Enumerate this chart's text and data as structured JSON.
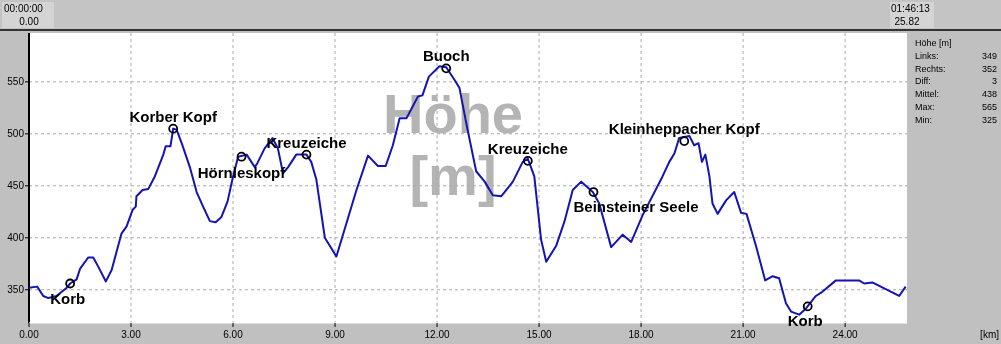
{
  "chart_data": {
    "type": "line",
    "ylabel": "Höhe [m]",
    "xlim": [
      0,
      25.82
    ],
    "ylim": [
      318,
      597
    ],
    "xticks": [
      {
        "value": 0,
        "label": "0.00"
      },
      {
        "value": 3,
        "label": "3.00"
      },
      {
        "value": 6,
        "label": "6.00"
      },
      {
        "value": 9,
        "label": "9.00"
      },
      {
        "value": 12,
        "label": "12.00"
      },
      {
        "value": 15,
        "label": "15.00"
      },
      {
        "value": 18,
        "label": "18.00"
      },
      {
        "value": 21,
        "label": "21.00"
      },
      {
        "value": 24,
        "label": "24.00"
      }
    ],
    "yticks": [
      350,
      400,
      450,
      500,
      550
    ],
    "grid": true,
    "series": [
      {
        "color": "#1414b4",
        "marker": "none",
        "line_style": "solid",
        "x": [
          0,
          0.24,
          0.42,
          0.57,
          0.81,
          1.11,
          1.21,
          1.4,
          1.5,
          1.74,
          1.89,
          2.04,
          2.26,
          2.43,
          2.72,
          2.87,
          3.05,
          3.14,
          3.16,
          3.34,
          3.51,
          3.7,
          3.95,
          4.02,
          4.16,
          4.24,
          4.34,
          4.49,
          4.73,
          4.93,
          5.12,
          5.32,
          5.49,
          5.66,
          5.84,
          6.0,
          6.15,
          6.4,
          6.64,
          6.72,
          6.93,
          7.16,
          7.32,
          7.47,
          7.62,
          7.86,
          8.16,
          8.3,
          8.45,
          8.7,
          9.04,
          9.28,
          9.63,
          9.97,
          10.26,
          10.49,
          10.7,
          10.9,
          11.1,
          11.44,
          11.57,
          11.76,
          12.07,
          12.27,
          12.51,
          12.66,
          12.86,
          13.15,
          13.4,
          13.64,
          13.89,
          14.23,
          14.52,
          14.67,
          14.86,
          15.06,
          15.21,
          15.5,
          15.75,
          15.99,
          16.24,
          16.58,
          16.77,
          17.12,
          17.46,
          17.71,
          18.05,
          18.63,
          18.83,
          18.98,
          19.12,
          19.42,
          19.56,
          19.69,
          19.79,
          19.89,
          20.01,
          20.1,
          20.25,
          20.5,
          20.74,
          20.94,
          21.1,
          21.38,
          21.65,
          21.87,
          22.06,
          22.26,
          22.41,
          22.65,
          22.85,
          23.14,
          23.33,
          23.73,
          24.41,
          24.56,
          24.8,
          25.59,
          25.78
        ],
        "values": [
          352,
          353,
          344,
          342,
          344,
          352,
          356,
          360,
          370,
          381,
          381,
          372,
          358,
          369,
          404,
          411,
          427,
          430,
          440,
          446,
          447,
          459,
          480,
          488,
          488,
          505,
          504,
          491,
          468,
          444,
          430,
          416,
          415,
          420,
          435,
          459,
          478,
          480,
          468,
          472,
          486,
          496,
          486,
          462,
          468,
          480,
          480,
          473,
          456,
          400,
          382,
          408,
          446,
          479,
          469,
          469,
          489,
          515,
          515,
          536,
          537,
          555,
          565,
          564,
          552,
          544,
          510,
          464,
          454,
          441,
          440,
          454,
          473,
          476,
          459,
          398,
          377,
          392,
          416,
          446,
          454,
          444,
          433,
          391,
          403,
          396,
          422,
          459,
          473,
          481,
          496,
          498,
          489,
          491,
          473,
          480,
          459,
          433,
          423,
          436,
          444,
          424,
          423,
          392,
          359,
          363,
          361,
          337,
          329,
          326,
          332,
          344,
          348,
          359,
          359,
          356,
          357,
          344,
          353
        ]
      },
      {
        "type": "scatter",
        "color": "#000000",
        "marker": "circle",
        "x": [
          1.21,
          4.24,
          6.25,
          8.16,
          12.27,
          14.67,
          16.6,
          19.27,
          22.9
        ],
        "values": [
          356,
          505,
          478,
          480,
          563,
          474,
          444,
          493,
          334
        ]
      }
    ],
    "annotations": [
      "00:00:00",
      "0.00",
      "01:46:13",
      "25.82",
      "Höhe [m]",
      "Links:",
      "349",
      "Rechts:",
      "352",
      "Diff:",
      "3",
      "Mittel:",
      "438",
      "Max:",
      "565",
      "Min:",
      "325",
      "[km]",
      {
        "text": "Korb",
        "x": 1.21,
        "y": 356
      },
      {
        "text": "Korber Kopf",
        "x": 4.24,
        "y": 505
      },
      {
        "text": "Hörnleskopf",
        "x": 6.25,
        "y": 478
      },
      {
        "text": "Kreuzeiche",
        "x": 8.16,
        "y": 480
      },
      {
        "text": "Buoch",
        "x": 12.27,
        "y": 563
      },
      {
        "text": "Kreuzeiche",
        "x": 14.67,
        "y": 474
      },
      {
        "text": "Beinsteiner Seele",
        "x": 16.6,
        "y": 444
      },
      {
        "text": "Kleinheppacher Kopf",
        "x": 19.27,
        "y": 493
      },
      {
        "text": "Korb",
        "x": 22.9,
        "y": 334
      }
    ]
  }
}
